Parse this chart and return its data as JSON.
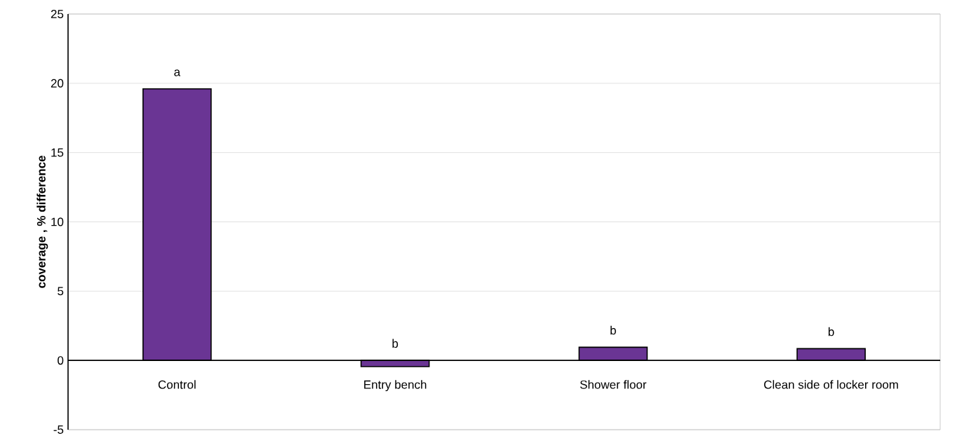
{
  "chart_data": {
    "type": "bar",
    "ylabel": "coverage , % difference",
    "categories": [
      "Control",
      "Entry bench",
      "Shower floor",
      "Clean side of locker room"
    ],
    "values": [
      19.6,
      -0.45,
      0.95,
      0.85
    ],
    "color": "#6a3594",
    "ylim": [
      -5,
      25
    ],
    "yticks": [
      -5,
      0,
      5,
      10,
      15,
      20,
      25
    ],
    "grid": "y",
    "annotations": [
      {
        "text": "a",
        "x": "Control",
        "y": 19.6
      },
      {
        "text": "b",
        "x": "Entry bench",
        "y": -0.45
      },
      {
        "text": "b",
        "x": "Shower floor",
        "y": 0.95
      },
      {
        "text": "b",
        "x": "Clean side of locker room",
        "y": 0.85
      }
    ]
  }
}
